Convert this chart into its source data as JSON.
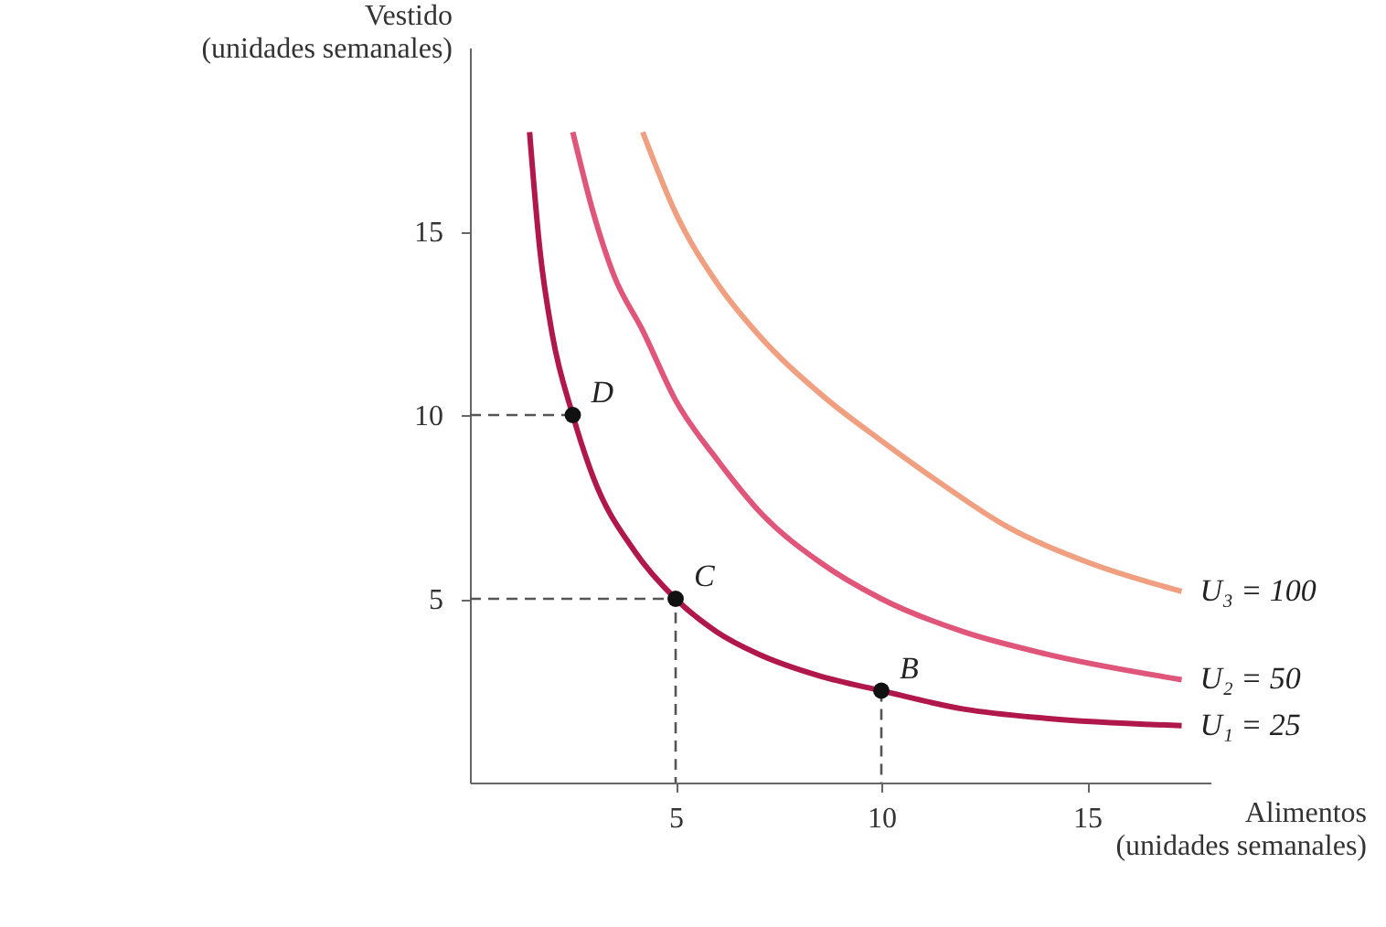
{
  "chart_data": {
    "type": "line",
    "xlabel": "Alimentos\n(unidades semanales)",
    "ylabel": "Vestido\n(unidades semanales)",
    "xlim": [
      0,
      18
    ],
    "ylim": [
      0,
      20
    ],
    "xticks": [
      5,
      10,
      15
    ],
    "yticks": [
      5,
      10,
      15
    ],
    "grid": false,
    "marker": "none",
    "line_style": "solid",
    "series": [
      {
        "name": "U₃ = 100",
        "color": "#f0a080",
        "x": [
          4.2,
          5,
          6,
          7,
          8.6,
          10,
          11.5,
          13,
          15,
          17.3
        ],
        "values": [
          17.7,
          15.5,
          13.6,
          12.2,
          10.5,
          9.3,
          8.1,
          7.0,
          6.0,
          5.2
        ]
      },
      {
        "name": "U₂ = 50",
        "color": "#e0557a",
        "x": [
          2.5,
          3,
          3.5,
          4.2,
          5,
          6,
          7.1,
          8.5,
          10,
          12,
          14,
          17.3
        ],
        "values": [
          17.7,
          15.5,
          13.8,
          12.3,
          10.4,
          8.8,
          7.3,
          6.0,
          5.0,
          4.1,
          3.5,
          2.8
        ]
      },
      {
        "name": "U₁ = 25",
        "color": "#b0174a",
        "x": [
          1.45,
          1.7,
          2,
          2.5,
          3,
          4,
          5,
          6,
          7,
          8.5,
          10,
          12,
          14,
          17.3
        ],
        "values": [
          17.7,
          14.5,
          12.2,
          10,
          8.3,
          6.3,
          5,
          4.1,
          3.5,
          2.9,
          2.5,
          2.0,
          1.75,
          1.55
        ]
      },
      {
        "type": "line",
        "line_style": "dashed",
        "color": "#555555",
        "x": [
          0,
          2.5
        ],
        "values": [
          10,
          10
        ]
      },
      {
        "type": "line",
        "line_style": "dashed",
        "color": "#555555",
        "x": [
          0,
          5,
          5
        ],
        "values": [
          5,
          5,
          0
        ]
      },
      {
        "type": "line",
        "line_style": "dashed",
        "color": "#555555",
        "x": [
          10,
          10
        ],
        "values": [
          2.5,
          0
        ]
      },
      {
        "type": "scatter",
        "marker": "circle",
        "color": "#111111",
        "x": [
          2.5,
          5,
          10
        ],
        "values": [
          10,
          5,
          2.5
        ]
      }
    ],
    "annotations": [
      {
        "text": "D",
        "x": 2.5,
        "y": 10
      },
      {
        "text": "C",
        "x": 5,
        "y": 5
      },
      {
        "text": "B",
        "x": 10,
        "y": 2.5
      }
    ]
  }
}
